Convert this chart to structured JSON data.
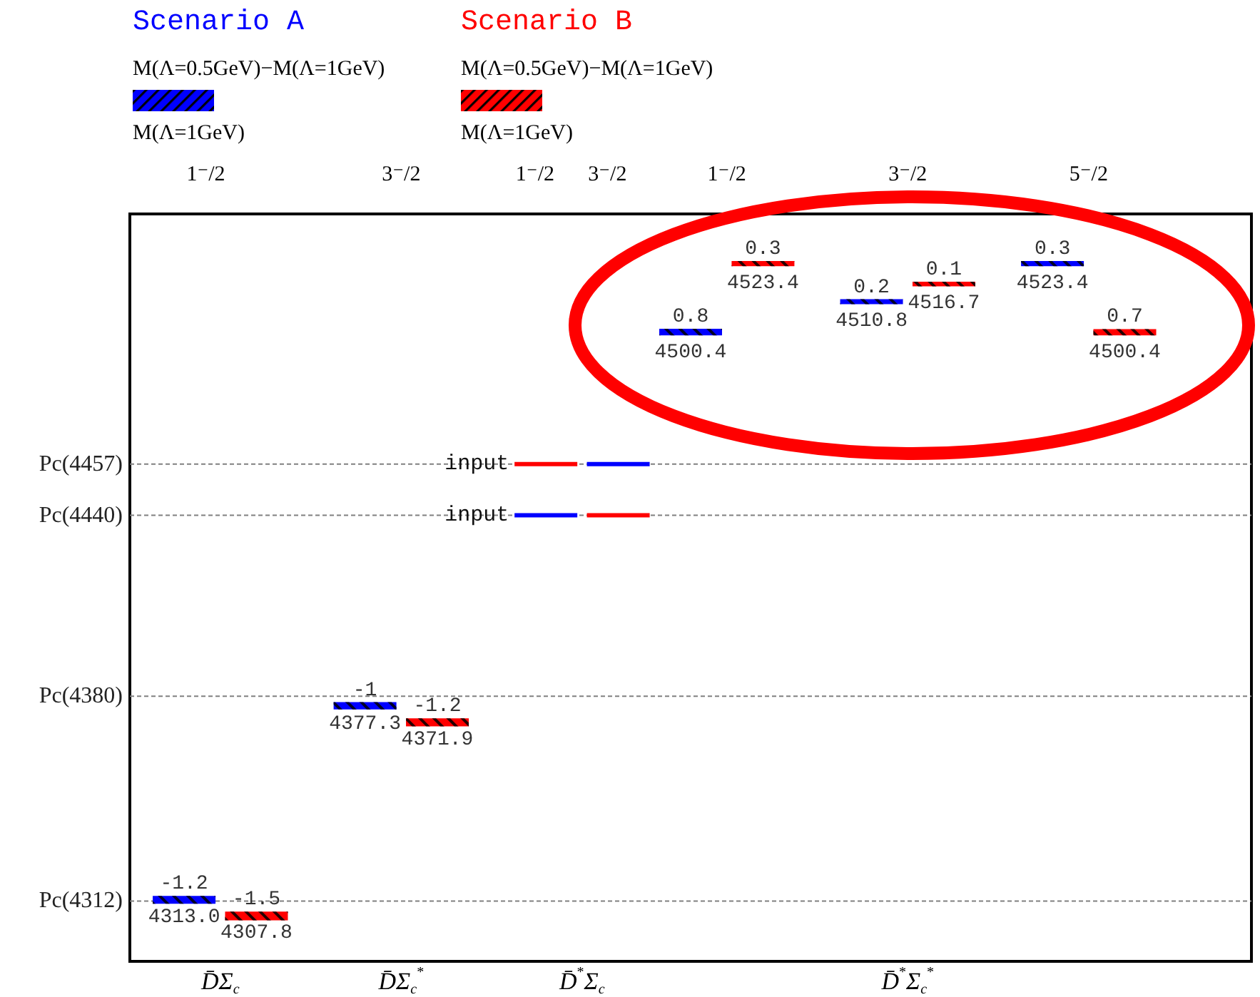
{
  "chart_data": {
    "type": "bar",
    "legend": "top left",
    "categories": [
      null,
      null,
      "D̄Σ$_{c}$",
      null,
      null,
      null,
      null,
      "D̄Σ$_{c}$$^{*}$",
      null,
      null,
      null,
      null,
      "D̄$^{*}$Σ$_{c}$",
      null,
      null,
      null,
      null,
      null,
      null,
      null,
      null,
      "D̄$^{*}$Σ$_{c}$$^{*}$",
      null,
      null,
      null,
      null,
      null,
      null,
      null,
      null,
      null
    ],
    "ylim": [
      4292,
      4540
    ],
    "ref_lines": [
      {
        "axis": "y",
        "value": 4312,
        "label": "Pc(4312)",
        "line_style": "dashed",
        "color": "#808080"
      },
      {
        "axis": "y",
        "value": 4380,
        "label": "Pc(4380)",
        "line_style": "dashed",
        "color": "#808080"
      },
      {
        "axis": "y",
        "value": 4440,
        "label": "Pc(4440)",
        "line_style": "dashed",
        "color": "#808080"
      },
      {
        "axis": "y",
        "value": 4457,
        "label": "Pc(4457)",
        "line_style": "dashed",
        "color": "#808080"
      }
    ],
    "series": [
      {
        "name": "Scenario A",
        "color": "#0000ff",
        "base": [
          null,
          4313.0,
          null,
          null,
          null,
          null,
          4377.3,
          null,
          null,
          null,
          null,
          4440,
          null,
          4457,
          null,
          4500.4,
          null,
          null,
          null,
          null,
          4510.8,
          null,
          null,
          null,
          null,
          4523.4,
          null,
          null,
          null,
          null,
          null
        ],
        "values": [
          null,
          -1.2,
          null,
          null,
          null,
          null,
          -1,
          null,
          null,
          null,
          null,
          0,
          null,
          0,
          null,
          0.8,
          null,
          null,
          null,
          null,
          0.2,
          null,
          null,
          null,
          null,
          0.3,
          null,
          null,
          null,
          null,
          null
        ],
        "value_labels": [
          null,
          "-1.2",
          null,
          null,
          null,
          null,
          "-1",
          null,
          null,
          null,
          null,
          null,
          null,
          null,
          null,
          "0.8",
          null,
          null,
          null,
          null,
          "0.2",
          null,
          null,
          null,
          null,
          "0.3",
          null,
          null,
          null,
          null,
          null
        ]
      },
      {
        "name": "Scenario B",
        "color": "#ff0000",
        "base": [
          null,
          null,
          null,
          4307.8,
          null,
          null,
          null,
          null,
          4371.9,
          null,
          null,
          4457,
          null,
          4440,
          null,
          null,
          null,
          4523.4,
          null,
          null,
          null,
          null,
          4516.7,
          null,
          null,
          null,
          null,
          4500.4,
          null,
          null,
          null
        ],
        "values": [
          null,
          null,
          null,
          -1.5,
          null,
          null,
          null,
          null,
          -1.2,
          null,
          null,
          0,
          null,
          0,
          null,
          null,
          null,
          0.3,
          null,
          null,
          null,
          null,
          0.1,
          null,
          null,
          null,
          null,
          0.7,
          null,
          null,
          null
        ],
        "value_labels": [
          null,
          null,
          null,
          "-1.5",
          null,
          null,
          null,
          null,
          "-1.2",
          null,
          null,
          null,
          null,
          null,
          null,
          null,
          null,
          "0.3",
          null,
          null,
          null,
          null,
          "0.1",
          null,
          null,
          null,
          null,
          "0.7",
          null,
          null,
          null
        ]
      }
    ],
    "annotations": [
      "M(Λ=0.5GeV)−M(Λ=1GeV)",
      "M(Λ=1GeV)",
      "1⁻/2",
      "3⁻/2",
      "1⁻/2",
      "3⁻/2",
      "1⁻/2",
      "3⁻/2",
      "5⁻/2",
      {
        "text": "input",
        "y": 4457
      },
      {
        "text": "input",
        "y": 4440
      },
      {
        "text": "4313.0",
        "y": 4313.0
      },
      {
        "text": "4377.3",
        "y": 4377.3
      },
      {
        "text": "4500.4",
        "y": 4500.4
      },
      {
        "text": "4510.8",
        "y": 4510.8
      },
      {
        "text": "4523.4",
        "y": 4523.4
      },
      {
        "text": "4307.8",
        "y": 4307.8
      },
      {
        "text": "4371.9",
        "y": 4371.9
      },
      {
        "text": "4523.4",
        "y": 4523.4
      },
      {
        "text": "4516.7",
        "y": 4516.7
      },
      {
        "text": "4500.4",
        "y": 4500.4
      }
    ]
  }
}
